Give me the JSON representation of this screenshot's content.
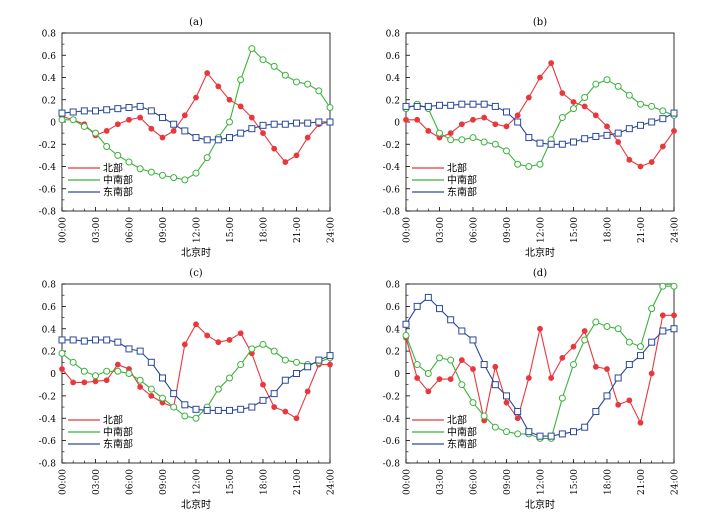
{
  "xlabel": "北京时",
  "x_tick_labels": [
    "00:00",
    "03:00",
    "06:00",
    "09:00",
    "12:00",
    "15:00",
    "18:00",
    "21:00",
    "24:00"
  ],
  "y_tick_labels": [
    "0.8",
    "0.6",
    "0.4",
    "0.2",
    "0",
    "-0.2",
    "-0.4",
    "-0.6",
    "-0.8"
  ],
  "legend_labels": [
    "北部",
    "中南部",
    "东南部"
  ],
  "chart_data": [
    {
      "type": "line",
      "title": "(a)",
      "xlabel": "北京时",
      "x": [
        0,
        1,
        2,
        3,
        4,
        5,
        6,
        7,
        8,
        9,
        10,
        11,
        12,
        13,
        14,
        15,
        16,
        17,
        18,
        19,
        20,
        21,
        22,
        23,
        24
      ],
      "xlim": [
        0,
        24
      ],
      "ylim": [
        -0.8,
        0.8
      ],
      "legend": "bottom-left",
      "series": [
        {
          "name": "北部",
          "color": "#e8383d",
          "marker": "filled-circle",
          "values": [
            0.05,
            0.02,
            -0.02,
            -0.12,
            -0.08,
            -0.02,
            0.02,
            0.04,
            -0.06,
            -0.14,
            -0.08,
            0.06,
            0.22,
            0.44,
            0.32,
            0.2,
            0.14,
            0.04,
            -0.1,
            -0.24,
            -0.36,
            -0.3,
            -0.14,
            -0.02,
            0.0
          ]
        },
        {
          "name": "中南部",
          "color": "#3cb23c",
          "marker": "open-circle",
          "values": [
            0.02,
            0.02,
            -0.04,
            -0.1,
            -0.22,
            -0.3,
            -0.36,
            -0.42,
            -0.45,
            -0.48,
            -0.5,
            -0.52,
            -0.46,
            -0.32,
            -0.14,
            0.0,
            0.38,
            0.66,
            0.56,
            0.5,
            0.42,
            0.36,
            0.34,
            0.28,
            0.13
          ]
        },
        {
          "name": "东南部",
          "color": "#2b4a9c",
          "marker": "open-square",
          "values": [
            0.08,
            0.09,
            0.1,
            0.1,
            0.11,
            0.12,
            0.13,
            0.14,
            0.1,
            0.04,
            -0.02,
            -0.08,
            -0.14,
            -0.16,
            -0.16,
            -0.14,
            -0.1,
            -0.06,
            -0.03,
            -0.02,
            -0.02,
            -0.01,
            -0.01,
            0.0,
            0.0
          ]
        }
      ]
    },
    {
      "type": "line",
      "title": "(b)",
      "xlabel": "北京时",
      "x": [
        0,
        1,
        2,
        3,
        4,
        5,
        6,
        7,
        8,
        9,
        10,
        11,
        12,
        13,
        14,
        15,
        16,
        17,
        18,
        19,
        20,
        21,
        22,
        23,
        24
      ],
      "xlim": [
        0,
        24
      ],
      "ylim": [
        -0.8,
        0.8
      ],
      "legend": "bottom-left",
      "series": [
        {
          "name": "北部",
          "color": "#e8383d",
          "marker": "filled-circle",
          "values": [
            0.02,
            0.02,
            -0.08,
            -0.14,
            -0.1,
            -0.02,
            0.02,
            0.04,
            -0.02,
            -0.04,
            0.06,
            0.22,
            0.4,
            0.53,
            0.26,
            0.18,
            0.14,
            0.06,
            -0.04,
            -0.18,
            -0.34,
            -0.4,
            -0.36,
            -0.22,
            -0.08
          ]
        },
        {
          "name": "中南部",
          "color": "#3cb23c",
          "marker": "open-circle",
          "values": [
            0.12,
            0.16,
            0.12,
            -0.1,
            -0.16,
            -0.16,
            -0.14,
            -0.18,
            -0.2,
            -0.26,
            -0.38,
            -0.4,
            -0.38,
            -0.16,
            0.04,
            0.12,
            0.22,
            0.34,
            0.38,
            0.32,
            0.24,
            0.16,
            0.14,
            0.1,
            0.06
          ]
        },
        {
          "name": "东南部",
          "color": "#2b4a9c",
          "marker": "open-square",
          "values": [
            0.14,
            0.14,
            0.14,
            0.15,
            0.15,
            0.16,
            0.16,
            0.16,
            0.14,
            0.09,
            0.0,
            -0.14,
            -0.19,
            -0.2,
            -0.2,
            -0.18,
            -0.15,
            -0.13,
            -0.12,
            -0.1,
            -0.06,
            -0.03,
            0.0,
            0.03,
            0.08
          ]
        }
      ]
    },
    {
      "type": "line",
      "title": "(c)",
      "xlabel": "北京时",
      "x": [
        0,
        1,
        2,
        3,
        4,
        5,
        6,
        7,
        8,
        9,
        10,
        11,
        12,
        13,
        14,
        15,
        16,
        17,
        18,
        19,
        20,
        21,
        22,
        23,
        24
      ],
      "xlim": [
        0,
        24
      ],
      "ylim": [
        -0.8,
        0.8
      ],
      "legend": "bottom-left",
      "series": [
        {
          "name": "北部",
          "color": "#e8383d",
          "marker": "filled-circle",
          "values": [
            0.04,
            -0.08,
            -0.08,
            -0.07,
            -0.06,
            0.08,
            0.04,
            -0.12,
            -0.2,
            -0.26,
            -0.3,
            0.26,
            0.44,
            0.34,
            0.28,
            0.3,
            0.36,
            0.18,
            -0.1,
            -0.3,
            -0.34,
            -0.4,
            -0.16,
            0.08,
            0.08
          ]
        },
        {
          "name": "中南部",
          "color": "#3cb23c",
          "marker": "open-circle",
          "values": [
            0.18,
            0.1,
            0.02,
            -0.02,
            0.02,
            0.02,
            0.0,
            -0.06,
            -0.14,
            -0.22,
            -0.3,
            -0.38,
            -0.4,
            -0.3,
            -0.14,
            -0.04,
            0.08,
            0.22,
            0.26,
            0.2,
            0.12,
            0.1,
            0.08,
            0.1,
            0.14
          ]
        },
        {
          "name": "东南部",
          "color": "#2b4a9c",
          "marker": "open-square",
          "values": [
            0.3,
            0.3,
            0.29,
            0.3,
            0.3,
            0.28,
            0.22,
            0.2,
            0.1,
            -0.04,
            -0.18,
            -0.28,
            -0.32,
            -0.33,
            -0.33,
            -0.33,
            -0.32,
            -0.3,
            -0.24,
            -0.18,
            -0.06,
            0.0,
            0.06,
            0.12,
            0.16
          ]
        }
      ]
    },
    {
      "type": "line",
      "title": "(d)",
      "xlabel": "北京时",
      "x": [
        0,
        1,
        2,
        3,
        4,
        5,
        6,
        7,
        8,
        9,
        10,
        11,
        12,
        13,
        14,
        15,
        16,
        17,
        18,
        19,
        20,
        21,
        22,
        23,
        24
      ],
      "xlim": [
        0,
        24
      ],
      "ylim": [
        -0.8,
        0.8
      ],
      "legend": "bottom-left",
      "series": [
        {
          "name": "北部",
          "color": "#e8383d",
          "marker": "filled-circle",
          "values": [
            0.32,
            -0.04,
            -0.16,
            -0.05,
            -0.05,
            0.12,
            0.04,
            -0.42,
            0.06,
            -0.26,
            -0.4,
            -0.04,
            0.4,
            -0.04,
            0.14,
            0.24,
            0.38,
            0.06,
            0.04,
            -0.28,
            -0.24,
            -0.44,
            0.0,
            0.52,
            0.52
          ]
        },
        {
          "name": "中南部",
          "color": "#3cb23c",
          "marker": "open-circle",
          "values": [
            0.34,
            0.08,
            0.0,
            0.14,
            0.12,
            -0.1,
            -0.26,
            -0.38,
            -0.48,
            -0.52,
            -0.54,
            -0.54,
            -0.58,
            -0.58,
            -0.22,
            0.08,
            0.3,
            0.46,
            0.42,
            0.4,
            0.28,
            0.24,
            0.58,
            0.78,
            0.78
          ]
        },
        {
          "name": "东南部",
          "color": "#2b4a9c",
          "marker": "open-square",
          "values": [
            0.44,
            0.6,
            0.68,
            0.58,
            0.48,
            0.38,
            0.3,
            0.08,
            -0.1,
            -0.2,
            -0.34,
            -0.52,
            -0.56,
            -0.56,
            -0.54,
            -0.52,
            -0.48,
            -0.34,
            -0.2,
            -0.04,
            0.08,
            0.16,
            0.28,
            0.38,
            0.4
          ]
        }
      ]
    }
  ]
}
